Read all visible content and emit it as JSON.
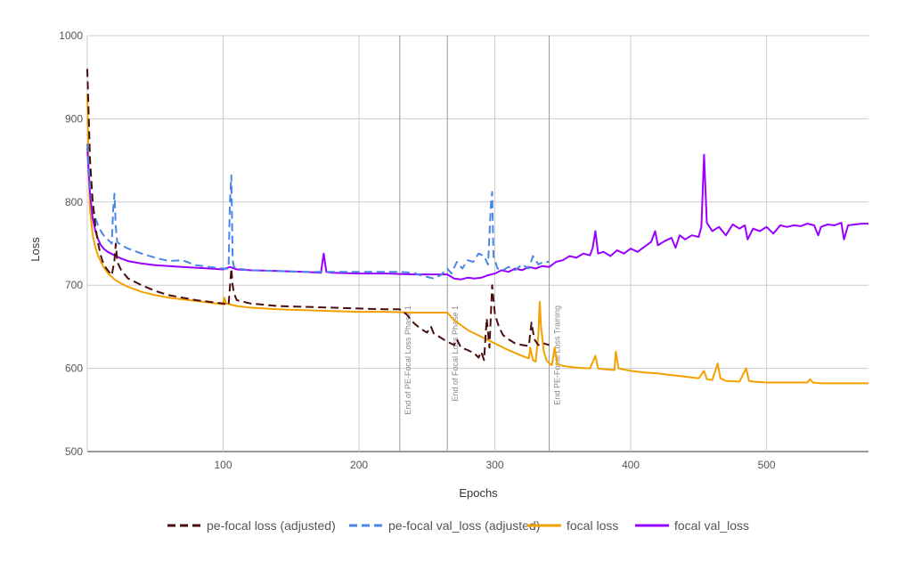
{
  "chart_data": {
    "type": "line",
    "xlabel": "Epochs",
    "ylabel": "Loss",
    "xlim": [
      0,
      575
    ],
    "ylim": [
      500,
      1000
    ],
    "x_ticks": [
      100,
      200,
      300,
      400,
      500
    ],
    "y_ticks": [
      500,
      600,
      700,
      800,
      900,
      1000
    ],
    "grid": true,
    "legend_position": "bottom",
    "annotations": [
      {
        "x": 230,
        "label": "End of PE-Focal Loss Phase 1"
      },
      {
        "x": 265,
        "label": "End of Focal Loss Phase 1"
      },
      {
        "x": 340,
        "label": "End PE-Focal Loss Training"
      }
    ],
    "series": [
      {
        "name": "pe-focal loss (adjusted)",
        "color": "#4a0e0e",
        "dashed": true,
        "points": [
          [
            0,
            960
          ],
          [
            2,
            850
          ],
          [
            4,
            800
          ],
          [
            6,
            770
          ],
          [
            8,
            750
          ],
          [
            10,
            735
          ],
          [
            12,
            725
          ],
          [
            15,
            718
          ],
          [
            18,
            712
          ],
          [
            20,
            730
          ],
          [
            21,
            750
          ],
          [
            22,
            728
          ],
          [
            25,
            718
          ],
          [
            30,
            708
          ],
          [
            40,
            700
          ],
          [
            50,
            693
          ],
          [
            60,
            688
          ],
          [
            70,
            685
          ],
          [
            80,
            682
          ],
          [
            90,
            680
          ],
          [
            100,
            678
          ],
          [
            104,
            676
          ],
          [
            106,
            720
          ],
          [
            107,
            700
          ],
          [
            108,
            690
          ],
          [
            110,
            682
          ],
          [
            120,
            678
          ],
          [
            140,
            675
          ],
          [
            160,
            674
          ],
          [
            180,
            673
          ],
          [
            200,
            672
          ],
          [
            220,
            671
          ],
          [
            230,
            671
          ],
          [
            235,
            665
          ],
          [
            240,
            655
          ],
          [
            245,
            648
          ],
          [
            250,
            643
          ],
          [
            253,
            650
          ],
          [
            255,
            642
          ],
          [
            260,
            637
          ],
          [
            265,
            632
          ],
          [
            270,
            628
          ],
          [
            272,
            635
          ],
          [
            275,
            625
          ],
          [
            280,
            622
          ],
          [
            285,
            618
          ],
          [
            288,
            613
          ],
          [
            290,
            620
          ],
          [
            292,
            610
          ],
          [
            294,
            660
          ],
          [
            296,
            625
          ],
          [
            298,
            700
          ],
          [
            300,
            665
          ],
          [
            303,
            650
          ],
          [
            306,
            640
          ],
          [
            310,
            635
          ],
          [
            315,
            630
          ],
          [
            320,
            628
          ],
          [
            325,
            627
          ],
          [
            327,
            655
          ],
          [
            329,
            635
          ],
          [
            332,
            628
          ],
          [
            336,
            630
          ],
          [
            340,
            628
          ]
        ]
      },
      {
        "name": "pe-focal val_loss (adjusted)",
        "color": "#4a86e8",
        "dashed": true,
        "points": [
          [
            0,
            870
          ],
          [
            2,
            820
          ],
          [
            4,
            795
          ],
          [
            6,
            780
          ],
          [
            8,
            772
          ],
          [
            10,
            765
          ],
          [
            12,
            760
          ],
          [
            15,
            755
          ],
          [
            18,
            750
          ],
          [
            19,
            790
          ],
          [
            20,
            810
          ],
          [
            21,
            770
          ],
          [
            22,
            752
          ],
          [
            25,
            748
          ],
          [
            30,
            744
          ],
          [
            40,
            738
          ],
          [
            50,
            733
          ],
          [
            60,
            729
          ],
          [
            70,
            730
          ],
          [
            80,
            724
          ],
          [
            90,
            722
          ],
          [
            100,
            720
          ],
          [
            104,
            720
          ],
          [
            105,
            800
          ],
          [
            106,
            832
          ],
          [
            107,
            730
          ],
          [
            108,
            722
          ],
          [
            110,
            720
          ],
          [
            120,
            718
          ],
          [
            140,
            717
          ],
          [
            160,
            716
          ],
          [
            180,
            716
          ],
          [
            200,
            716
          ],
          [
            220,
            716
          ],
          [
            230,
            716
          ],
          [
            240,
            715
          ],
          [
            245,
            712
          ],
          [
            250,
            710
          ],
          [
            255,
            708
          ],
          [
            260,
            712
          ],
          [
            265,
            720
          ],
          [
            268,
            714
          ],
          [
            272,
            728
          ],
          [
            276,
            720
          ],
          [
            280,
            730
          ],
          [
            284,
            728
          ],
          [
            288,
            738
          ],
          [
            292,
            735
          ],
          [
            295,
            725
          ],
          [
            297,
            795
          ],
          [
            298,
            812
          ],
          [
            299,
            735
          ],
          [
            302,
            720
          ],
          [
            306,
            718
          ],
          [
            310,
            722
          ],
          [
            315,
            718
          ],
          [
            320,
            725
          ],
          [
            325,
            720
          ],
          [
            328,
            735
          ],
          [
            332,
            725
          ],
          [
            336,
            728
          ],
          [
            340,
            728
          ]
        ]
      },
      {
        "name": "focal loss",
        "color": "#f4a100",
        "dashed": false,
        "points": [
          [
            0,
            930
          ],
          [
            1,
            840
          ],
          [
            2,
            790
          ],
          [
            4,
            760
          ],
          [
            6,
            745
          ],
          [
            8,
            735
          ],
          [
            10,
            728
          ],
          [
            12,
            722
          ],
          [
            14,
            717
          ],
          [
            16,
            713
          ],
          [
            18,
            710
          ],
          [
            20,
            707
          ],
          [
            25,
            702
          ],
          [
            30,
            698
          ],
          [
            40,
            692
          ],
          [
            50,
            688
          ],
          [
            60,
            685
          ],
          [
            70,
            683
          ],
          [
            80,
            681
          ],
          [
            90,
            679
          ],
          [
            100,
            677
          ],
          [
            101,
            685
          ],
          [
            102,
            678
          ],
          [
            110,
            675
          ],
          [
            120,
            673
          ],
          [
            140,
            671
          ],
          [
            160,
            670
          ],
          [
            180,
            669
          ],
          [
            200,
            668
          ],
          [
            220,
            668
          ],
          [
            240,
            667
          ],
          [
            260,
            667
          ],
          [
            265,
            667
          ],
          [
            270,
            658
          ],
          [
            275,
            652
          ],
          [
            280,
            646
          ],
          [
            290,
            638
          ],
          [
            300,
            630
          ],
          [
            310,
            622
          ],
          [
            320,
            615
          ],
          [
            325,
            612
          ],
          [
            326,
            625
          ],
          [
            328,
            610
          ],
          [
            330,
            608
          ],
          [
            332,
            640
          ],
          [
            333,
            680
          ],
          [
            334,
            650
          ],
          [
            336,
            620
          ],
          [
            338,
            610
          ],
          [
            340,
            606
          ],
          [
            342,
            604
          ],
          [
            344,
            625
          ],
          [
            346,
            605
          ],
          [
            350,
            603
          ],
          [
            360,
            601
          ],
          [
            370,
            600
          ],
          [
            374,
            615
          ],
          [
            376,
            600
          ],
          [
            380,
            599
          ],
          [
            388,
            598
          ],
          [
            389,
            620
          ],
          [
            391,
            600
          ],
          [
            400,
            597
          ],
          [
            410,
            595
          ],
          [
            420,
            594
          ],
          [
            430,
            592
          ],
          [
            440,
            590
          ],
          [
            450,
            588
          ],
          [
            454,
            597
          ],
          [
            456,
            587
          ],
          [
            460,
            586
          ],
          [
            464,
            606
          ],
          [
            466,
            588
          ],
          [
            470,
            585
          ],
          [
            480,
            584
          ],
          [
            485,
            600
          ],
          [
            487,
            585
          ],
          [
            490,
            584
          ],
          [
            500,
            583
          ],
          [
            510,
            583
          ],
          [
            520,
            583
          ],
          [
            530,
            583
          ],
          [
            532,
            587
          ],
          [
            534,
            583
          ],
          [
            540,
            582
          ],
          [
            560,
            582
          ],
          [
            575,
            582
          ]
        ]
      },
      {
        "name": "focal val_loss",
        "color": "#9900ff",
        "dashed": false,
        "points": [
          [
            0,
            865
          ],
          [
            2,
            810
          ],
          [
            4,
            780
          ],
          [
            6,
            765
          ],
          [
            8,
            755
          ],
          [
            10,
            748
          ],
          [
            12,
            744
          ],
          [
            15,
            740
          ],
          [
            20,
            736
          ],
          [
            25,
            732
          ],
          [
            30,
            729
          ],
          [
            40,
            726
          ],
          [
            50,
            724
          ],
          [
            60,
            723
          ],
          [
            70,
            722
          ],
          [
            80,
            721
          ],
          [
            90,
            720
          ],
          [
            100,
            719
          ],
          [
            105,
            722
          ],
          [
            110,
            719
          ],
          [
            120,
            718
          ],
          [
            140,
            717
          ],
          [
            160,
            716
          ],
          [
            172,
            715
          ],
          [
            174,
            738
          ],
          [
            176,
            716
          ],
          [
            180,
            715
          ],
          [
            200,
            714
          ],
          [
            220,
            714
          ],
          [
            240,
            713
          ],
          [
            260,
            713
          ],
          [
            265,
            713
          ],
          [
            270,
            708
          ],
          [
            275,
            707
          ],
          [
            280,
            709
          ],
          [
            285,
            708
          ],
          [
            290,
            709
          ],
          [
            295,
            712
          ],
          [
            300,
            714
          ],
          [
            305,
            718
          ],
          [
            310,
            716
          ],
          [
            315,
            720
          ],
          [
            320,
            718
          ],
          [
            325,
            722
          ],
          [
            330,
            720
          ],
          [
            335,
            723
          ],
          [
            340,
            722
          ],
          [
            345,
            728
          ],
          [
            350,
            730
          ],
          [
            355,
            735
          ],
          [
            360,
            733
          ],
          [
            365,
            738
          ],
          [
            370,
            736
          ],
          [
            372,
            745
          ],
          [
            374,
            765
          ],
          [
            376,
            738
          ],
          [
            380,
            740
          ],
          [
            385,
            735
          ],
          [
            390,
            742
          ],
          [
            395,
            738
          ],
          [
            400,
            744
          ],
          [
            405,
            740
          ],
          [
            410,
            746
          ],
          [
            415,
            752
          ],
          [
            418,
            765
          ],
          [
            420,
            748
          ],
          [
            425,
            753
          ],
          [
            430,
            757
          ],
          [
            433,
            745
          ],
          [
            436,
            760
          ],
          [
            440,
            755
          ],
          [
            445,
            760
          ],
          [
            450,
            758
          ],
          [
            452,
            770
          ],
          [
            454,
            857
          ],
          [
            456,
            775
          ],
          [
            460,
            765
          ],
          [
            465,
            770
          ],
          [
            470,
            760
          ],
          [
            475,
            773
          ],
          [
            480,
            768
          ],
          [
            484,
            772
          ],
          [
            486,
            755
          ],
          [
            490,
            768
          ],
          [
            495,
            765
          ],
          [
            500,
            770
          ],
          [
            505,
            762
          ],
          [
            510,
            772
          ],
          [
            515,
            770
          ],
          [
            520,
            772
          ],
          [
            525,
            771
          ],
          [
            530,
            774
          ],
          [
            535,
            772
          ],
          [
            538,
            760
          ],
          [
            540,
            770
          ],
          [
            545,
            773
          ],
          [
            550,
            772
          ],
          [
            555,
            775
          ],
          [
            557,
            755
          ],
          [
            560,
            772
          ],
          [
            565,
            773
          ],
          [
            570,
            774
          ],
          [
            575,
            774
          ]
        ]
      }
    ]
  }
}
